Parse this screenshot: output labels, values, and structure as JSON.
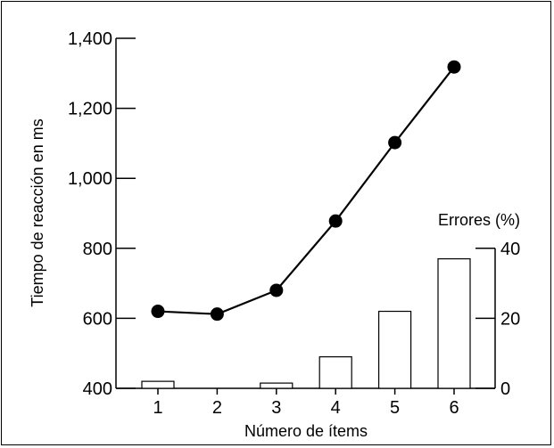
{
  "chart_data": {
    "type": "line+bar",
    "x": {
      "label": "Número de ítems",
      "categories": [
        "1",
        "2",
        "3",
        "4",
        "5",
        "6"
      ]
    },
    "y_left": {
      "label": "Tiempo de reacción en ms",
      "ylim": [
        400,
        1400
      ],
      "ticks": [
        "400",
        "600",
        "800",
        "1,000",
        "1,200",
        "1,400"
      ]
    },
    "y_right": {
      "label": "Errores (%)",
      "ylim": [
        0,
        40
      ],
      "ticks": [
        "0",
        "20",
        "40"
      ]
    },
    "series": [
      {
        "type": "line",
        "axis": "left",
        "values": [
          620,
          612,
          680,
          878,
          1102,
          1318
        ]
      },
      {
        "type": "bar",
        "axis": "right",
        "values": [
          2,
          0,
          1.5,
          9,
          22,
          37
        ]
      }
    ],
    "grid": false,
    "legend": "none"
  },
  "colors": {
    "line": "#000000",
    "marker": "#000000",
    "bar_fill": "#ffffff",
    "bar_stroke": "#000000"
  }
}
